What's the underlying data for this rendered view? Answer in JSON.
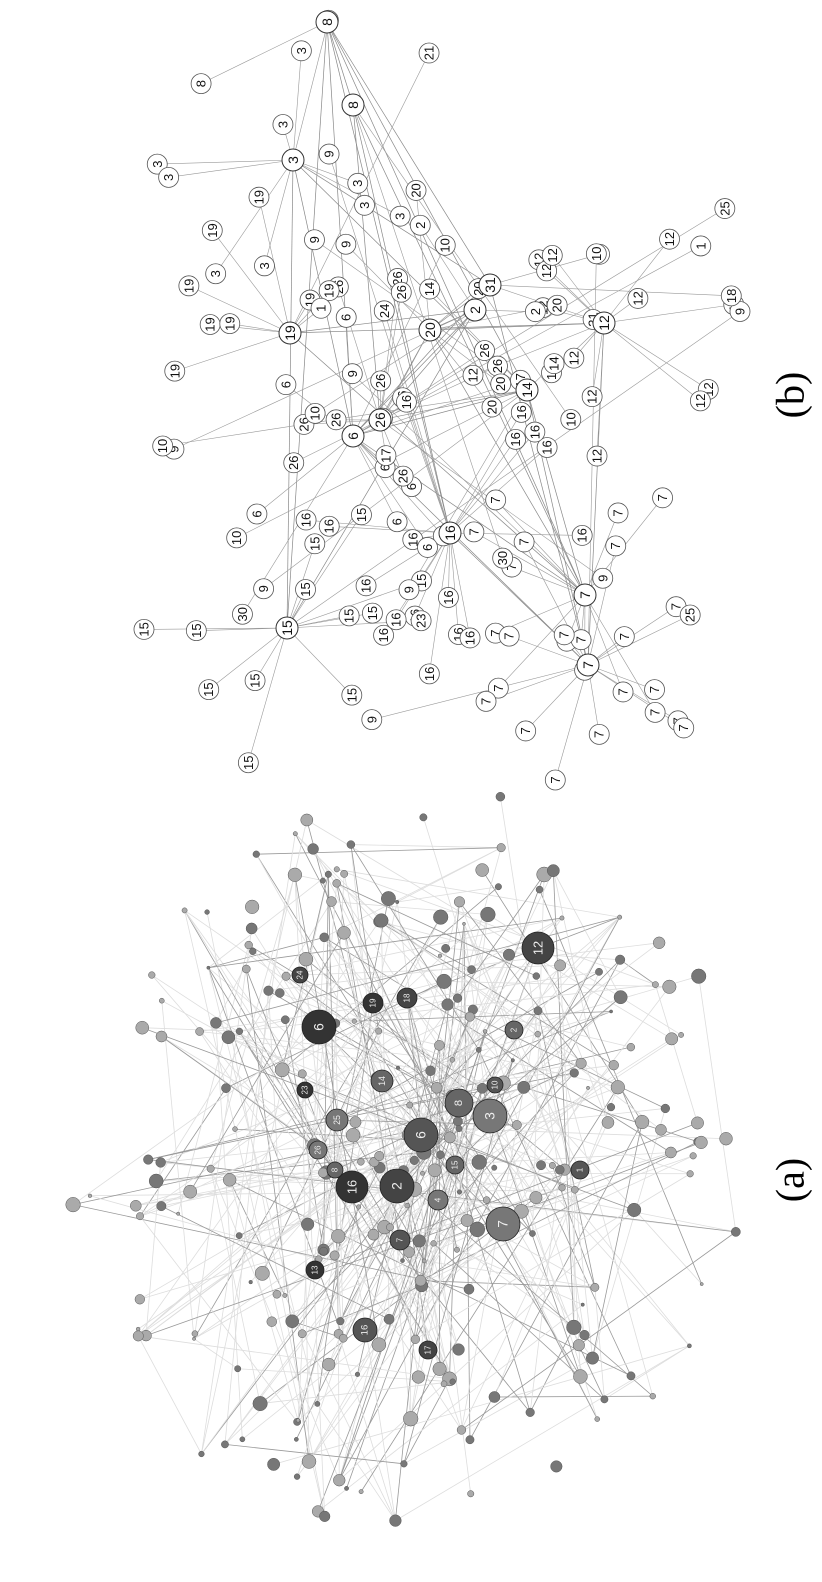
{
  "figure": {
    "graph_a": {
      "caption": "(a)",
      "nodes": [
        "12",
        "6",
        "3",
        "6",
        "8",
        "2",
        "16",
        "7",
        "16",
        "14",
        "18",
        "19",
        "25",
        "1",
        "2",
        "24",
        "23",
        "26",
        "10",
        "15",
        "17",
        "13",
        "4",
        "7",
        "8"
      ]
    },
    "graph_b": {
      "caption": "(b)",
      "hubs": [
        "15",
        "16",
        "6",
        "7",
        "7",
        "14",
        "12",
        "2",
        "8",
        "8",
        "3",
        "19",
        "31",
        "26",
        "20"
      ],
      "leaves": [
        "15",
        "15",
        "15",
        "15",
        "15",
        "15",
        "15",
        "15",
        "15",
        "15",
        "15",
        "15",
        "16",
        "16",
        "16",
        "16",
        "16",
        "16",
        "16",
        "16",
        "16",
        "16",
        "16",
        "16",
        "16",
        "16",
        "16",
        "16",
        "16",
        "16",
        "6",
        "6",
        "6",
        "6",
        "6",
        "6",
        "6",
        "6",
        "7",
        "7",
        "7",
        "7",
        "7",
        "7",
        "7",
        "7",
        "7",
        "7",
        "7",
        "7",
        "7",
        "7",
        "7",
        "7",
        "7",
        "7",
        "7",
        "7",
        "7",
        "7",
        "7",
        "7",
        "7",
        "12",
        "12",
        "12",
        "12",
        "12",
        "12",
        "12",
        "12",
        "12",
        "12",
        "12",
        "12",
        "12",
        "12",
        "26",
        "26",
        "26",
        "26",
        "26",
        "26",
        "26",
        "26",
        "26",
        "26",
        "20",
        "20",
        "20",
        "20",
        "20",
        "20",
        "9",
        "9",
        "9",
        "9",
        "9",
        "9",
        "9",
        "9",
        "9",
        "9",
        "19",
        "19",
        "19",
        "19",
        "19",
        "19",
        "19",
        "19",
        "3",
        "3",
        "3",
        "3",
        "3",
        "3",
        "3",
        "3",
        "3",
        "3",
        "31",
        "31",
        "30",
        "30",
        "10",
        "10",
        "10",
        "10",
        "10",
        "10",
        "17",
        "17",
        "1",
        "1",
        "25",
        "25",
        "2",
        "2",
        "14",
        "14",
        "18",
        "23",
        "24",
        "8",
        "21"
      ]
    }
  }
}
